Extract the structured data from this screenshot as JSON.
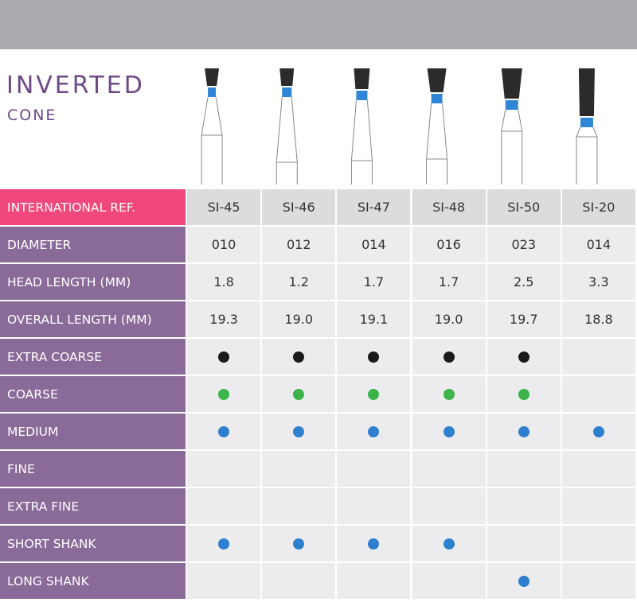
{
  "header": {
    "title": "INVERTED",
    "subtitle": "CONE"
  },
  "table": {
    "columns": [
      "SI-45",
      "SI-46",
      "SI-47",
      "SI-48",
      "SI-50",
      "SI-20"
    ],
    "header_label": "INTERNATIONAL REF.",
    "rows": [
      {
        "label": "DIAMETER",
        "cells": [
          "010",
          "012",
          "014",
          "016",
          "023",
          "014"
        ]
      },
      {
        "label": "HEAD LENGTH (MM)",
        "cells": [
          "1.8",
          "1.2",
          "1.7",
          "1.7",
          "2.5",
          "3.3"
        ]
      },
      {
        "label": "OVERALL LENGTH (MM)",
        "cells": [
          "19.3",
          "19.0",
          "19.1",
          "19.0",
          "19.7",
          "18.8"
        ]
      },
      {
        "label": "EXTRA COARSE",
        "dot_color": "#1a1a1a",
        "cells": [
          true,
          true,
          true,
          true,
          true,
          null
        ]
      },
      {
        "label": "COARSE",
        "dot_color": "#3cb44b",
        "cells": [
          true,
          true,
          true,
          true,
          true,
          null
        ]
      },
      {
        "label": "MEDIUM",
        "dot_color": "#2f7fcf",
        "cells": [
          true,
          true,
          true,
          true,
          true,
          true
        ]
      },
      {
        "label": "FINE",
        "dot_color": "#2f7fcf",
        "cells": [
          null,
          null,
          null,
          null,
          null,
          null
        ]
      },
      {
        "label": "EXTRA FINE",
        "dot_color": "#2f7fcf",
        "cells": [
          null,
          null,
          null,
          null,
          null,
          null
        ]
      },
      {
        "label": "SHORT SHANK",
        "dot_color": "#2f7fcf",
        "cells": [
          true,
          true,
          true,
          true,
          null,
          null
        ]
      },
      {
        "label": "LONG SHANK",
        "dot_color": "#2f7fcf",
        "cells": [
          null,
          null,
          null,
          null,
          true,
          null
        ]
      }
    ]
  }
}
